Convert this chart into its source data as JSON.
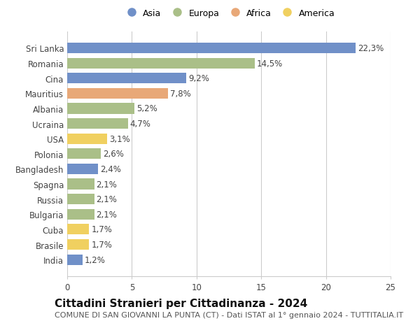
{
  "countries": [
    "Sri Lanka",
    "Romania",
    "Cina",
    "Mauritius",
    "Albania",
    "Ucraina",
    "USA",
    "Polonia",
    "Bangladesh",
    "Spagna",
    "Russia",
    "Bulgaria",
    "Cuba",
    "Brasile",
    "India"
  ],
  "values": [
    22.3,
    14.5,
    9.2,
    7.8,
    5.2,
    4.7,
    3.1,
    2.6,
    2.4,
    2.1,
    2.1,
    2.1,
    1.7,
    1.7,
    1.2
  ],
  "labels": [
    "22,3%",
    "14,5%",
    "9,2%",
    "7,8%",
    "5,2%",
    "4,7%",
    "3,1%",
    "2,6%",
    "2,4%",
    "2,1%",
    "2,1%",
    "2,1%",
    "1,7%",
    "1,7%",
    "1,2%"
  ],
  "continents": [
    "Asia",
    "Europa",
    "Asia",
    "Africa",
    "Europa",
    "Europa",
    "America",
    "Europa",
    "Asia",
    "Europa",
    "Europa",
    "Europa",
    "America",
    "America",
    "Asia"
  ],
  "colors": {
    "Asia": "#7090c8",
    "Europa": "#aabf88",
    "Africa": "#e8a878",
    "America": "#f0d060"
  },
  "title": "Cittadini Stranieri per Cittadinanza - 2024",
  "subtitle": "COMUNE DI SAN GIOVANNI LA PUNTA (CT) - Dati ISTAT al 1° gennaio 2024 - TUTTITALIA.IT",
  "xlim": [
    0,
    25
  ],
  "xticks": [
    0,
    5,
    10,
    15,
    20,
    25
  ],
  "background_color": "#ffffff",
  "grid_color": "#cccccc",
  "bar_height": 0.7,
  "title_fontsize": 11,
  "subtitle_fontsize": 8,
  "tick_fontsize": 8.5,
  "label_fontsize": 8.5,
  "legend_order": [
    "Asia",
    "Europa",
    "Africa",
    "America"
  ]
}
